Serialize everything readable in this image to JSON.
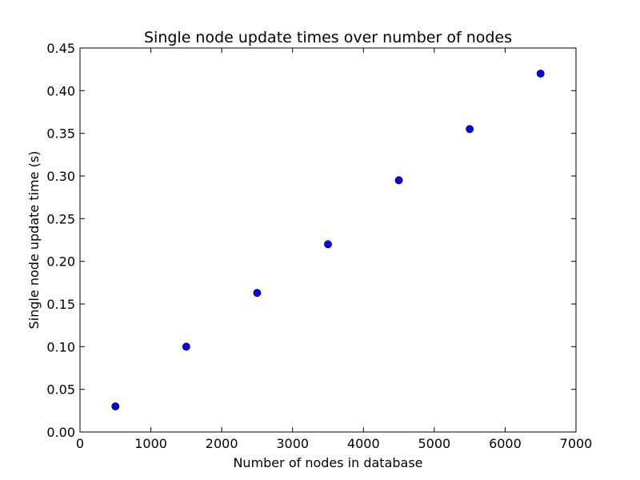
{
  "chart_data": {
    "type": "scatter",
    "title": "Single node update times over number of nodes",
    "xlabel": "Number of nodes in database",
    "ylabel": "Single node update time (s)",
    "xlim": [
      0,
      7000
    ],
    "ylim": [
      0,
      0.45
    ],
    "xticks": [
      0,
      1000,
      2000,
      3000,
      4000,
      5000,
      6000,
      7000
    ],
    "xtick_labels": [
      "0",
      "1000",
      "2000",
      "3000",
      "4000",
      "5000",
      "6000",
      "7000"
    ],
    "yticks": [
      0,
      0.05,
      0.1,
      0.15,
      0.2,
      0.25,
      0.3,
      0.35,
      0.4,
      0.45
    ],
    "ytick_labels": [
      "0.00",
      "0.05",
      "0.10",
      "0.15",
      "0.20",
      "0.25",
      "0.30",
      "0.35",
      "0.40",
      "0.45"
    ],
    "grid": false,
    "series": [
      {
        "color": "#0000ff",
        "marker": "circle",
        "points": [
          {
            "x": 500,
            "y": 0.03
          },
          {
            "x": 1500,
            "y": 0.1
          },
          {
            "x": 2500,
            "y": 0.163
          },
          {
            "x": 3500,
            "y": 0.22
          },
          {
            "x": 4500,
            "y": 0.295
          },
          {
            "x": 5500,
            "y": 0.355
          },
          {
            "x": 6500,
            "y": 0.42
          }
        ]
      }
    ]
  }
}
